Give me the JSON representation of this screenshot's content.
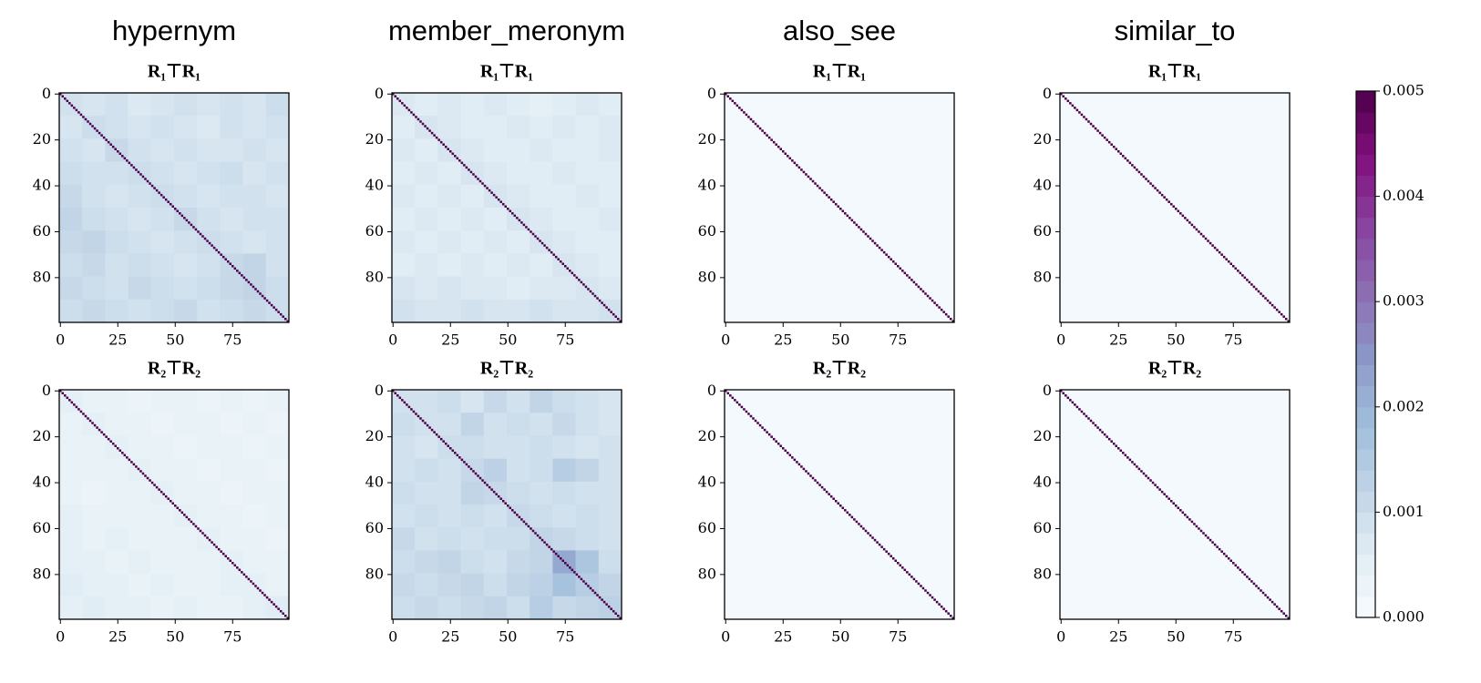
{
  "chart_data": [
    {
      "type": "heatmap",
      "title": "hypernym",
      "subtitle": "R₁⊤R₁",
      "xlim": [
        -0.5,
        99.5
      ],
      "ylim": [
        99.5,
        -0.5
      ],
      "xticks": [
        0,
        25,
        50,
        75
      ],
      "yticks": [
        0,
        20,
        40,
        60,
        80
      ],
      "diagonal": 0.005,
      "blocks": [
        [
          0.0009,
          0.0008,
          0.0009,
          0.0007,
          0.0008,
          0.0009,
          0.0008,
          0.0009,
          0.0008,
          0.001
        ],
        [
          0.0008,
          0.001,
          0.0009,
          0.0008,
          0.0009,
          0.0008,
          0.0007,
          0.0009,
          0.0008,
          0.0009
        ],
        [
          0.0009,
          0.0008,
          0.0011,
          0.0009,
          0.0008,
          0.0009,
          0.0008,
          0.0008,
          0.0009,
          0.0008
        ],
        [
          0.001,
          0.0009,
          0.0009,
          0.001,
          0.0009,
          0.0008,
          0.0009,
          0.001,
          0.0008,
          0.0009
        ],
        [
          0.0011,
          0.0009,
          0.0008,
          0.0009,
          0.001,
          0.0009,
          0.0008,
          0.0009,
          0.0009,
          0.0008
        ],
        [
          0.0012,
          0.001,
          0.0009,
          0.0008,
          0.0009,
          0.0011,
          0.0009,
          0.0008,
          0.0009,
          0.0009
        ],
        [
          0.0011,
          0.0012,
          0.001,
          0.0009,
          0.0008,
          0.0009,
          0.001,
          0.0009,
          0.0008,
          0.0009
        ],
        [
          0.001,
          0.0011,
          0.0009,
          0.001,
          0.0009,
          0.0008,
          0.0009,
          0.0011,
          0.0012,
          0.0009
        ],
        [
          0.0011,
          0.001,
          0.0009,
          0.0011,
          0.001,
          0.0009,
          0.001,
          0.0011,
          0.0012,
          0.001
        ],
        [
          0.001,
          0.0011,
          0.001,
          0.0009,
          0.001,
          0.0011,
          0.0009,
          0.001,
          0.0011,
          0.001
        ]
      ]
    },
    {
      "type": "heatmap",
      "title": "member_meronym",
      "subtitle": "R₁⊤R₁",
      "xlim": [
        -0.5,
        99.5
      ],
      "ylim": [
        99.5,
        -0.5
      ],
      "xticks": [
        0,
        25,
        50,
        75
      ],
      "yticks": [
        0,
        20,
        40,
        60,
        80
      ],
      "diagonal": 0.005,
      "blocks": [
        [
          0.0007,
          0.0006,
          0.0007,
          0.0006,
          0.0007,
          0.0006,
          0.0005,
          0.0006,
          0.0007,
          0.0006
        ],
        [
          0.0006,
          0.0008,
          0.0007,
          0.0006,
          0.0006,
          0.0007,
          0.0006,
          0.0007,
          0.0006,
          0.0007
        ],
        [
          0.0007,
          0.0006,
          0.0008,
          0.0007,
          0.0006,
          0.0006,
          0.0007,
          0.0006,
          0.0006,
          0.0007
        ],
        [
          0.0006,
          0.0007,
          0.0006,
          0.0008,
          0.0007,
          0.0006,
          0.0006,
          0.0007,
          0.0006,
          0.0006
        ],
        [
          0.0007,
          0.0006,
          0.0007,
          0.0006,
          0.0008,
          0.0007,
          0.0006,
          0.0006,
          0.0007,
          0.0006
        ],
        [
          0.0006,
          0.0007,
          0.0006,
          0.0007,
          0.0006,
          0.0008,
          0.0007,
          0.0006,
          0.0006,
          0.0007
        ],
        [
          0.0007,
          0.0006,
          0.0007,
          0.0006,
          0.0007,
          0.0006,
          0.0008,
          0.0007,
          0.0006,
          0.0006
        ],
        [
          0.0006,
          0.0007,
          0.0006,
          0.0007,
          0.0006,
          0.0007,
          0.0006,
          0.0008,
          0.0007,
          0.0006
        ],
        [
          0.0008,
          0.0007,
          0.0008,
          0.0007,
          0.0007,
          0.0006,
          0.0007,
          0.0007,
          0.0008,
          0.0007
        ],
        [
          0.0009,
          0.0008,
          0.0008,
          0.0009,
          0.0008,
          0.0008,
          0.0009,
          0.0008,
          0.0008,
          0.0009
        ]
      ]
    },
    {
      "type": "heatmap",
      "title": "also_see",
      "subtitle": "R₁⊤R₁",
      "xlim": [
        -0.5,
        99.5
      ],
      "ylim": [
        99.5,
        -0.5
      ],
      "xticks": [
        0,
        25,
        50,
        75
      ],
      "yticks": [
        0,
        20,
        40,
        60,
        80
      ],
      "diagonal": 0.005,
      "blocks": [
        [
          0.0001,
          0.0001,
          0.0001,
          0.0001,
          0.0001,
          0.0001,
          0.0001,
          0.0001,
          0.0001,
          0.0001
        ],
        [
          0.0001,
          0.0001,
          0.0001,
          0.0001,
          0.0001,
          0.0001,
          0.0001,
          0.0001,
          0.0001,
          0.0001
        ],
        [
          0.0001,
          0.0001,
          0.0001,
          0.0001,
          0.0001,
          0.0001,
          0.0001,
          0.0001,
          0.0001,
          0.0001
        ],
        [
          0.0001,
          0.0001,
          0.0001,
          0.0001,
          0.0001,
          0.0001,
          0.0001,
          0.0001,
          0.0001,
          0.0001
        ],
        [
          0.0001,
          0.0001,
          0.0001,
          0.0001,
          0.0001,
          0.0001,
          0.0001,
          0.0001,
          0.0001,
          0.0001
        ],
        [
          0.0001,
          0.0001,
          0.0001,
          0.0001,
          0.0001,
          0.0001,
          0.0001,
          0.0001,
          0.0001,
          0.0001
        ],
        [
          0.0001,
          0.0001,
          0.0001,
          0.0001,
          0.0001,
          0.0001,
          0.0001,
          0.0001,
          0.0001,
          0.0001
        ],
        [
          0.0001,
          0.0001,
          0.0001,
          0.0001,
          0.0001,
          0.0001,
          0.0001,
          0.0001,
          0.0001,
          0.0001
        ],
        [
          0.0001,
          0.0001,
          0.0001,
          0.0001,
          0.0001,
          0.0001,
          0.0001,
          0.0001,
          0.0001,
          0.0001
        ],
        [
          0.0001,
          0.0001,
          0.0001,
          0.0001,
          0.0001,
          0.0001,
          0.0001,
          0.0001,
          0.0001,
          0.0001
        ]
      ]
    },
    {
      "type": "heatmap",
      "title": "similar_to",
      "subtitle": "R₁⊤R₁",
      "xlim": [
        -0.5,
        99.5
      ],
      "ylim": [
        99.5,
        -0.5
      ],
      "xticks": [
        0,
        25,
        50,
        75
      ],
      "yticks": [
        0,
        20,
        40,
        60,
        80
      ],
      "diagonal": 0.005,
      "blocks": [
        [
          0.0001,
          0.0001,
          0.0001,
          0.0001,
          0.0001,
          0.0001,
          0.0001,
          0.0001,
          0.0001,
          0.0001
        ],
        [
          0.0001,
          0.0001,
          0.0001,
          0.0001,
          0.0001,
          0.0001,
          0.0001,
          0.0001,
          0.0001,
          0.0001
        ],
        [
          0.0001,
          0.0001,
          0.0001,
          0.0001,
          0.0001,
          0.0001,
          0.0001,
          0.0001,
          0.0001,
          0.0001
        ],
        [
          0.0001,
          0.0001,
          0.0001,
          0.0001,
          0.0001,
          0.0001,
          0.0001,
          0.0001,
          0.0001,
          0.0001
        ],
        [
          0.0001,
          0.0001,
          0.0001,
          0.0001,
          0.0001,
          0.0001,
          0.0001,
          0.0001,
          0.0001,
          0.0001
        ],
        [
          0.0001,
          0.0001,
          0.0001,
          0.0001,
          0.0001,
          0.0001,
          0.0001,
          0.0001,
          0.0001,
          0.0001
        ],
        [
          0.0001,
          0.0001,
          0.0001,
          0.0001,
          0.0001,
          0.0001,
          0.0001,
          0.0001,
          0.0001,
          0.0001
        ],
        [
          0.0001,
          0.0001,
          0.0001,
          0.0001,
          0.0001,
          0.0001,
          0.0001,
          0.0001,
          0.0001,
          0.0001
        ],
        [
          0.0001,
          0.0001,
          0.0001,
          0.0001,
          0.0001,
          0.0001,
          0.0001,
          0.0001,
          0.0001,
          0.0001
        ],
        [
          0.0001,
          0.0001,
          0.0001,
          0.0001,
          0.0001,
          0.0001,
          0.0001,
          0.0001,
          0.0001,
          0.0001
        ]
      ]
    },
    {
      "type": "heatmap",
      "subtitle": "R₂⊤R₂",
      "xlim": [
        -0.5,
        99.5
      ],
      "ylim": [
        99.5,
        -0.5
      ],
      "xticks": [
        0,
        25,
        50,
        75
      ],
      "yticks": [
        0,
        20,
        40,
        60,
        80
      ],
      "diagonal": 0.005,
      "blocks": [
        [
          0.0005,
          0.0004,
          0.0004,
          0.0003,
          0.0004,
          0.0004,
          0.0003,
          0.0004,
          0.0003,
          0.0004
        ],
        [
          0.0004,
          0.0005,
          0.0004,
          0.0004,
          0.0003,
          0.0004,
          0.0004,
          0.0003,
          0.0004,
          0.0003
        ],
        [
          0.0004,
          0.0004,
          0.0005,
          0.0004,
          0.0004,
          0.0003,
          0.0004,
          0.0004,
          0.0003,
          0.0004
        ],
        [
          0.0004,
          0.0004,
          0.0004,
          0.0005,
          0.0004,
          0.0004,
          0.0003,
          0.0004,
          0.0004,
          0.0003
        ],
        [
          0.0004,
          0.0003,
          0.0004,
          0.0004,
          0.0005,
          0.0004,
          0.0004,
          0.0003,
          0.0004,
          0.0004
        ],
        [
          0.0005,
          0.0004,
          0.0004,
          0.0004,
          0.0004,
          0.0005,
          0.0004,
          0.0004,
          0.0003,
          0.0004
        ],
        [
          0.0005,
          0.0004,
          0.0005,
          0.0004,
          0.0004,
          0.0004,
          0.0005,
          0.0004,
          0.0004,
          0.0003
        ],
        [
          0.0005,
          0.0005,
          0.0004,
          0.0005,
          0.0004,
          0.0004,
          0.0004,
          0.0005,
          0.0004,
          0.0004
        ],
        [
          0.0006,
          0.0005,
          0.0005,
          0.0004,
          0.0005,
          0.0004,
          0.0004,
          0.0005,
          0.0005,
          0.0004
        ],
        [
          0.0005,
          0.0006,
          0.0005,
          0.0005,
          0.0004,
          0.0005,
          0.0004,
          0.0004,
          0.0005,
          0.0006
        ]
      ]
    },
    {
      "type": "heatmap",
      "subtitle": "R₂⊤R₂",
      "xlim": [
        -0.5,
        99.5
      ],
      "ylim": [
        99.5,
        -0.5
      ],
      "xticks": [
        0,
        25,
        50,
        75
      ],
      "yticks": [
        0,
        20,
        40,
        60,
        80
      ],
      "diagonal": 0.005,
      "blocks": [
        [
          0.0009,
          0.0009,
          0.001,
          0.0008,
          0.0011,
          0.0009,
          0.0012,
          0.001,
          0.0009,
          0.0008
        ],
        [
          0.001,
          0.0009,
          0.0009,
          0.0012,
          0.0009,
          0.001,
          0.0009,
          0.0011,
          0.0009,
          0.0008
        ],
        [
          0.0009,
          0.0008,
          0.001,
          0.001,
          0.0009,
          0.0009,
          0.001,
          0.0009,
          0.0008,
          0.0009
        ],
        [
          0.0009,
          0.001,
          0.0009,
          0.0011,
          0.0013,
          0.0009,
          0.001,
          0.0014,
          0.0012,
          0.0009
        ],
        [
          0.001,
          0.0009,
          0.0009,
          0.0012,
          0.0011,
          0.001,
          0.0009,
          0.001,
          0.0009,
          0.0009
        ],
        [
          0.0009,
          0.001,
          0.0009,
          0.001,
          0.0009,
          0.0011,
          0.001,
          0.0009,
          0.001,
          0.0009
        ],
        [
          0.0011,
          0.0009,
          0.001,
          0.0009,
          0.001,
          0.001,
          0.0012,
          0.0011,
          0.001,
          0.0009
        ],
        [
          0.001,
          0.0011,
          0.0012,
          0.001,
          0.0009,
          0.0011,
          0.0012,
          0.0022,
          0.0016,
          0.001
        ],
        [
          0.0011,
          0.001,
          0.0011,
          0.0012,
          0.001,
          0.0012,
          0.0013,
          0.0017,
          0.0014,
          0.0012
        ],
        [
          0.001,
          0.0011,
          0.001,
          0.0011,
          0.0012,
          0.001,
          0.0014,
          0.0011,
          0.0012,
          0.0013
        ]
      ]
    },
    {
      "type": "heatmap",
      "subtitle": "R₂⊤R₂",
      "xlim": [
        -0.5,
        99.5
      ],
      "ylim": [
        99.5,
        -0.5
      ],
      "xticks": [
        0,
        25,
        50,
        75
      ],
      "yticks": [
        0,
        20,
        40,
        60,
        80
      ],
      "diagonal": 0.005,
      "blocks": [
        [
          0.0001,
          0.0001,
          0.0001,
          0.0001,
          0.0001,
          0.0001,
          0.0001,
          0.0001,
          0.0001,
          0.0001
        ],
        [
          0.0001,
          0.0001,
          0.0001,
          0.0001,
          0.0001,
          0.0001,
          0.0001,
          0.0001,
          0.0001,
          0.0001
        ],
        [
          0.0001,
          0.0001,
          0.0001,
          0.0001,
          0.0001,
          0.0001,
          0.0001,
          0.0001,
          0.0001,
          0.0001
        ],
        [
          0.0001,
          0.0001,
          0.0001,
          0.0001,
          0.0001,
          0.0001,
          0.0001,
          0.0001,
          0.0001,
          0.0001
        ],
        [
          0.0001,
          0.0001,
          0.0001,
          0.0001,
          0.0001,
          0.0001,
          0.0001,
          0.0001,
          0.0001,
          0.0001
        ],
        [
          0.0001,
          0.0001,
          0.0001,
          0.0001,
          0.0001,
          0.0001,
          0.0001,
          0.0001,
          0.0001,
          0.0001
        ],
        [
          0.0001,
          0.0001,
          0.0001,
          0.0001,
          0.0001,
          0.0001,
          0.0001,
          0.0001,
          0.0001,
          0.0001
        ],
        [
          0.0001,
          0.0001,
          0.0001,
          0.0001,
          0.0001,
          0.0001,
          0.0001,
          0.0001,
          0.0001,
          0.0001
        ],
        [
          0.0001,
          0.0001,
          0.0001,
          0.0001,
          0.0001,
          0.0001,
          0.0001,
          0.0001,
          0.0001,
          0.0001
        ],
        [
          0.0001,
          0.0001,
          0.0001,
          0.0001,
          0.0001,
          0.0001,
          0.0001,
          0.0001,
          0.0001,
          0.0001
        ]
      ]
    },
    {
      "type": "heatmap",
      "subtitle": "R₂⊤R₂",
      "xlim": [
        -0.5,
        99.5
      ],
      "ylim": [
        99.5,
        -0.5
      ],
      "xticks": [
        0,
        25,
        50,
        75
      ],
      "yticks": [
        0,
        20,
        40,
        60,
        80
      ],
      "diagonal": 0.005,
      "blocks": [
        [
          0.0001,
          0.0001,
          0.0001,
          0.0001,
          0.0001,
          0.0001,
          0.0001,
          0.0001,
          0.0001,
          0.0001
        ],
        [
          0.0001,
          0.0001,
          0.0001,
          0.0001,
          0.0001,
          0.0001,
          0.0001,
          0.0001,
          0.0001,
          0.0001
        ],
        [
          0.0001,
          0.0001,
          0.0001,
          0.0001,
          0.0001,
          0.0001,
          0.0001,
          0.0001,
          0.0001,
          0.0001
        ],
        [
          0.0001,
          0.0001,
          0.0001,
          0.0001,
          0.0001,
          0.0001,
          0.0001,
          0.0001,
          0.0001,
          0.0001
        ],
        [
          0.0001,
          0.0001,
          0.0001,
          0.0001,
          0.0001,
          0.0001,
          0.0001,
          0.0001,
          0.0001,
          0.0001
        ],
        [
          0.0001,
          0.0001,
          0.0001,
          0.0001,
          0.0001,
          0.0001,
          0.0001,
          0.0001,
          0.0001,
          0.0001
        ],
        [
          0.0001,
          0.0001,
          0.0001,
          0.0001,
          0.0001,
          0.0001,
          0.0001,
          0.0001,
          0.0001,
          0.0001
        ],
        [
          0.0001,
          0.0001,
          0.0001,
          0.0001,
          0.0001,
          0.0001,
          0.0001,
          0.0001,
          0.0001,
          0.0001
        ],
        [
          0.0001,
          0.0001,
          0.0001,
          0.0001,
          0.0001,
          0.0001,
          0.0001,
          0.0001,
          0.0001,
          0.0001
        ],
        [
          0.0001,
          0.0001,
          0.0001,
          0.0001,
          0.0001,
          0.0001,
          0.0001,
          0.0001,
          0.0001,
          0.0001
        ]
      ]
    }
  ],
  "colorbar": {
    "lim": [
      0,
      0.005
    ],
    "ticks": [
      {
        "value": 0,
        "label": "0.000"
      },
      0.001,
      0.002,
      0.003,
      0.004,
      0.005
    ],
    "colors": [
      "#f7fcfd",
      "#e0ecf4",
      "#bfd3e6",
      "#9ebcda",
      "#8c96c6",
      "#8c6bb1",
      "#88419d",
      "#810f7c",
      "#4d004b"
    ]
  }
}
